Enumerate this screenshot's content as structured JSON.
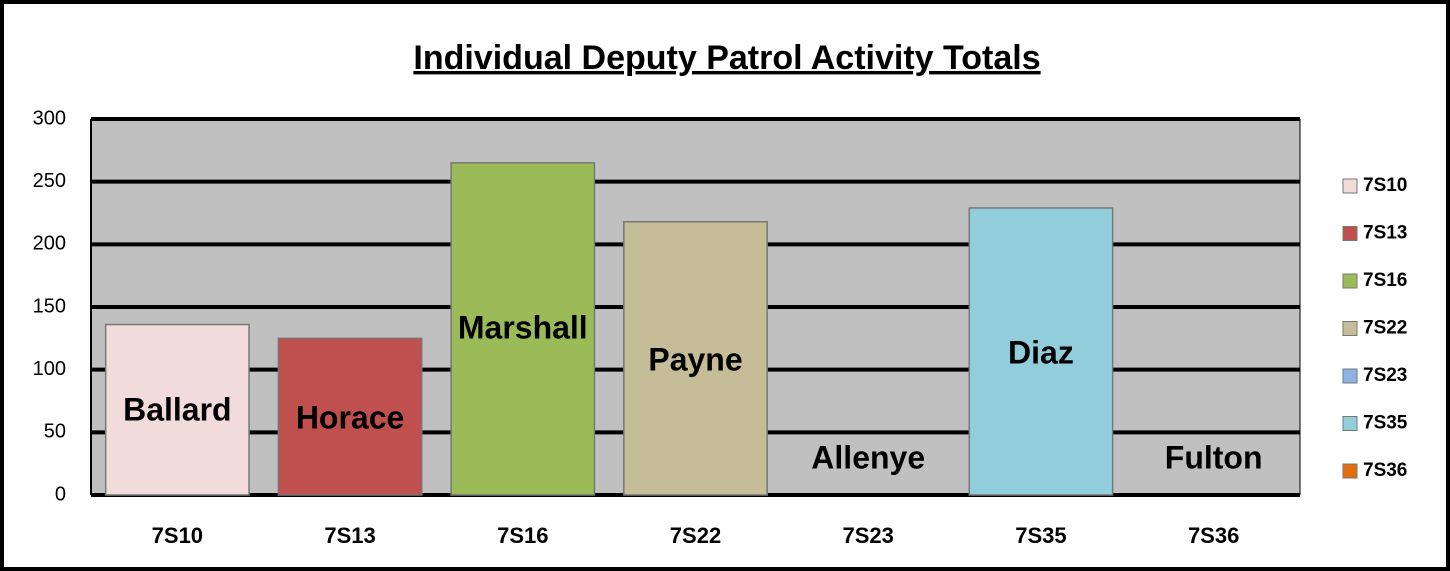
{
  "chart_data": {
    "type": "bar",
    "title": "Individual Deputy Patrol Activity Totals",
    "categories": [
      "7S10",
      "7S13",
      "7S16",
      "7S22",
      "7S23",
      "7S35",
      "7S36"
    ],
    "values": [
      136,
      125,
      265,
      218,
      0,
      229,
      0
    ],
    "colors": [
      "#f2dcdb",
      "#c0504d",
      "#9bbb59",
      "#c4bd97",
      "#8db3e2",
      "#92cddc",
      "#e46c0a"
    ],
    "labels": [
      "Ballard",
      "Horace",
      "Marshall",
      "Payne",
      "Allenye",
      "Diaz",
      "Fulton"
    ],
    "ylim": [
      0,
      300
    ],
    "yticks": [
      0,
      50,
      100,
      150,
      200,
      250,
      300
    ],
    "grid": true,
    "legend": "right"
  }
}
